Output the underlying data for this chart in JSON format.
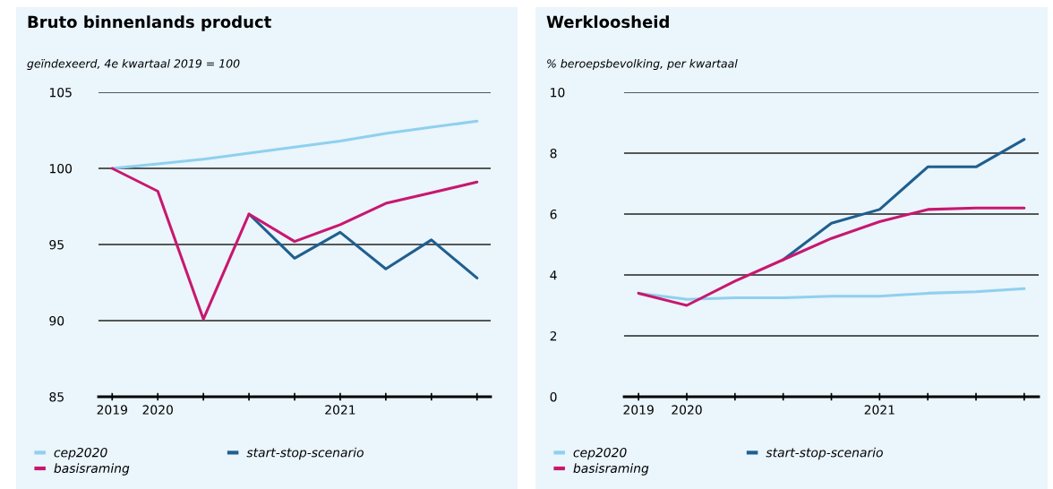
{
  "chart_data": [
    {
      "type": "line",
      "title": "Bruto binnenlands product",
      "subtitle": "geïndexeerd, 4e kwartaal 2019 = 100",
      "categories": [
        "2019",
        "2020",
        null,
        null,
        null,
        "2021",
        null,
        null,
        null
      ],
      "series": [
        {
          "name": "cep2020",
          "color": "#8fd0ee",
          "values": [
            100,
            100.3,
            100.6,
            101.0,
            101.4,
            101.8,
            102.3,
            102.7,
            103.1
          ]
        },
        {
          "name": "start-stop-scenario",
          "color": "#1f5f8f",
          "values": [
            null,
            null,
            null,
            97.0,
            94.1,
            95.8,
            93.4,
            95.3,
            92.8
          ]
        },
        {
          "name": "basisraming",
          "color": "#c8176f",
          "values": [
            100,
            98.5,
            90.1,
            97.0,
            95.2,
            96.3,
            97.7,
            98.4,
            99.1
          ]
        }
      ],
      "ylim": [
        85,
        105
      ],
      "yticks": [
        85,
        90,
        95,
        100,
        105
      ],
      "grid": "y",
      "legend": "bottom"
    },
    {
      "type": "line",
      "title": "Werkloosheid",
      "subtitle": "% beroepsbevolking, per kwartaal",
      "categories": [
        "2019",
        "2020",
        null,
        null,
        null,
        "2021",
        null,
        null,
        null
      ],
      "series": [
        {
          "name": "cep2020",
          "color": "#8fd0ee",
          "values": [
            3.4,
            3.2,
            3.25,
            3.25,
            3.3,
            3.3,
            3.4,
            3.45,
            3.55
          ]
        },
        {
          "name": "start-stop-scenario",
          "color": "#1f5f8f",
          "values": [
            null,
            null,
            null,
            4.5,
            5.7,
            6.15,
            7.55,
            7.55,
            8.45
          ]
        },
        {
          "name": "basisraming",
          "color": "#c8176f",
          "values": [
            3.4,
            3.0,
            3.8,
            4.5,
            5.2,
            5.75,
            6.15,
            6.2,
            6.2
          ]
        }
      ],
      "ylim": [
        0,
        10
      ],
      "yticks": [
        0,
        2,
        4,
        6,
        8,
        10
      ],
      "grid": "y",
      "legend": "bottom"
    }
  ]
}
